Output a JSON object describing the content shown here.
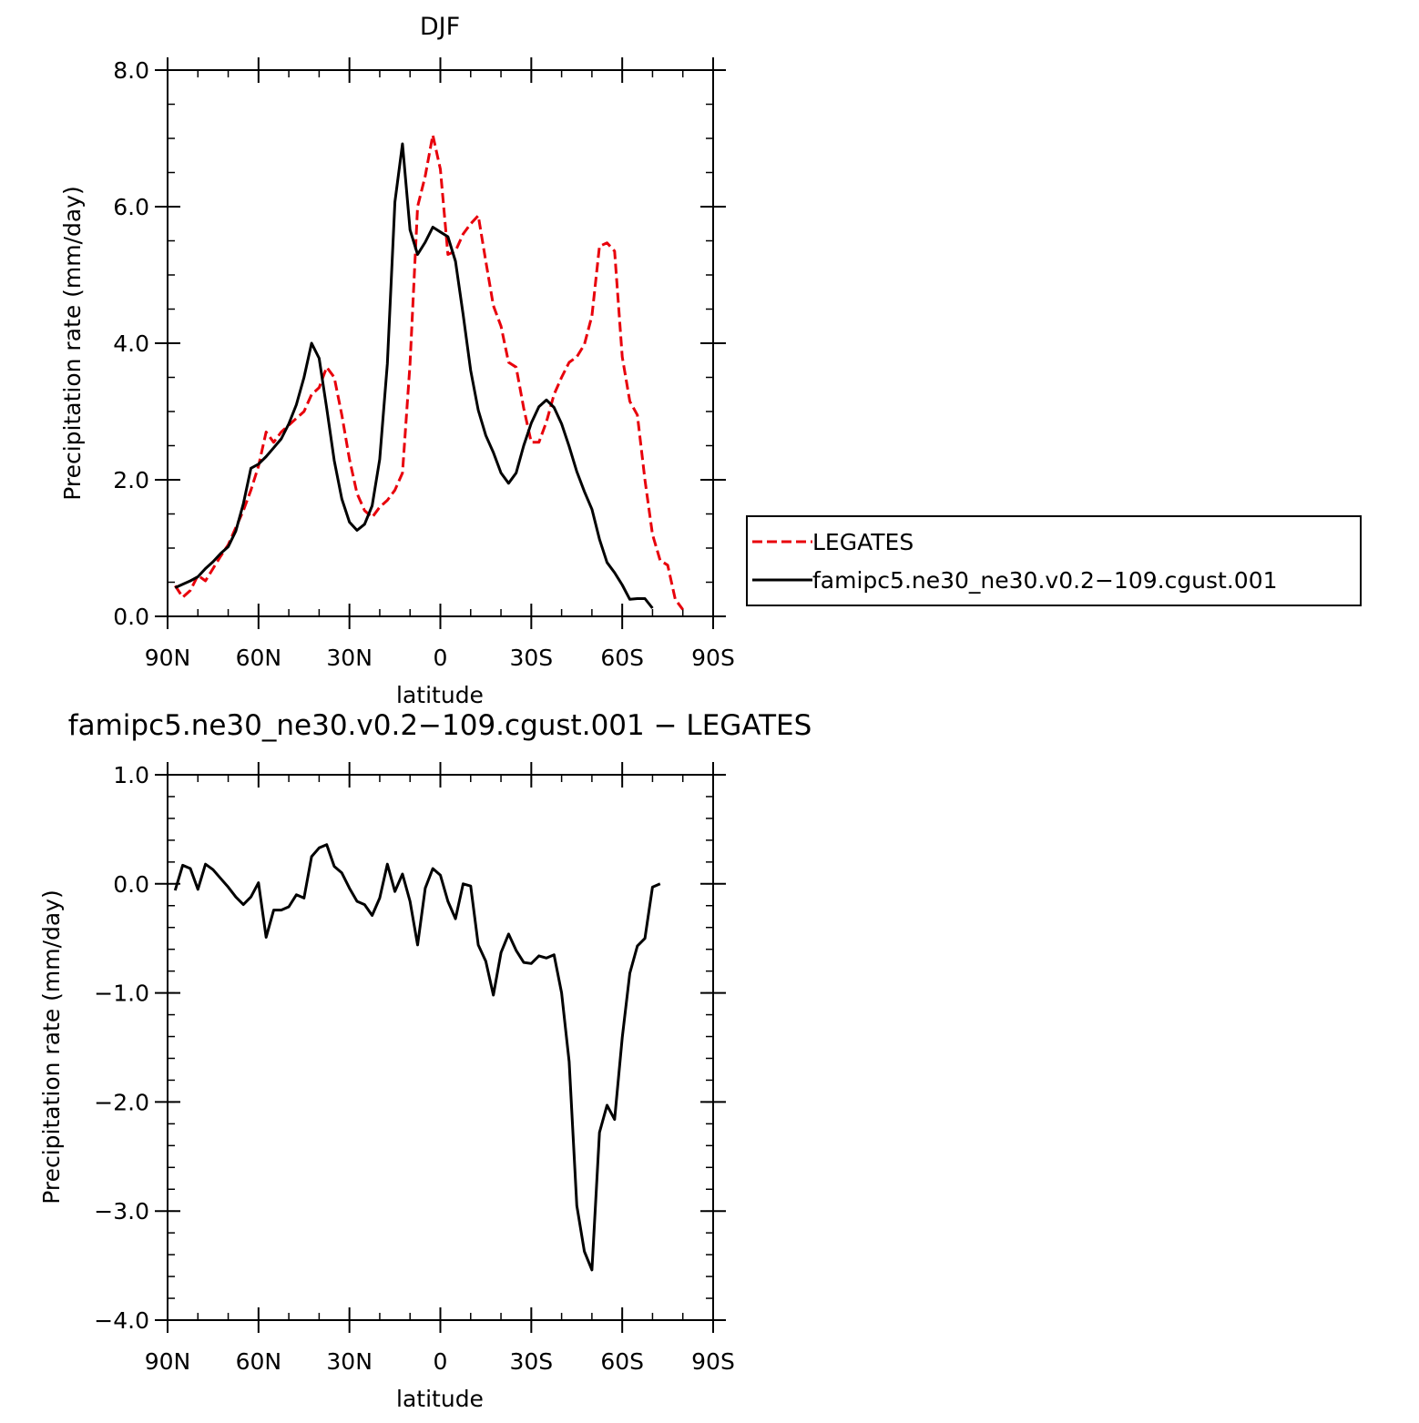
{
  "chart_data": [
    {
      "type": "line",
      "title": "DJF",
      "xlabel": "latitude",
      "ylabel": "Precipitation rate (mm/day)",
      "xlim": [
        90,
        -90
      ],
      "ylim": [
        0,
        8
      ],
      "x_tick_values": [
        90,
        60,
        30,
        0,
        -30,
        -60,
        -90
      ],
      "x_tick_labels": [
        "90N",
        "60N",
        "30N",
        "0",
        "30S",
        "60S",
        "90S"
      ],
      "y_tick_values": [
        0,
        2,
        4,
        6,
        8
      ],
      "y_tick_labels": [
        "0.0",
        "2.0",
        "4.0",
        "6.0",
        "8.0"
      ],
      "legend_position": "right",
      "series": [
        {
          "name": "LEGATES",
          "color": "#e8000b",
          "dash": "dashed",
          "points": [
            [
              87.5,
              0.45
            ],
            [
              85,
              0.28
            ],
            [
              82.5,
              0.38
            ],
            [
              80,
              0.6
            ],
            [
              77.5,
              0.52
            ],
            [
              75,
              0.7
            ],
            [
              72.5,
              0.88
            ],
            [
              70,
              1.05
            ],
            [
              67.5,
              1.3
            ],
            [
              65,
              1.55
            ],
            [
              62.5,
              1.85
            ],
            [
              60,
              2.2
            ],
            [
              57.5,
              2.7
            ],
            [
              55,
              2.55
            ],
            [
              52.5,
              2.7
            ],
            [
              50,
              2.8
            ],
            [
              47.5,
              2.9
            ],
            [
              45,
              3.0
            ],
            [
              42.5,
              3.25
            ],
            [
              40,
              3.35
            ],
            [
              37.5,
              3.65
            ],
            [
              35,
              3.5
            ],
            [
              32.5,
              2.95
            ],
            [
              30,
              2.3
            ],
            [
              27.5,
              1.8
            ],
            [
              25,
              1.55
            ],
            [
              22.5,
              1.45
            ],
            [
              20,
              1.6
            ],
            [
              17.5,
              1.7
            ],
            [
              15,
              1.85
            ],
            [
              12.5,
              2.1
            ],
            [
              10,
              3.7
            ],
            [
              7.5,
              6.0
            ],
            [
              5,
              6.45
            ],
            [
              2.5,
              7.05
            ],
            [
              0,
              6.55
            ],
            [
              -2.5,
              5.3
            ],
            [
              -5,
              5.35
            ],
            [
              -7.5,
              5.6
            ],
            [
              -10,
              5.75
            ],
            [
              -12.5,
              5.87
            ],
            [
              -15,
              5.2
            ],
            [
              -17.5,
              4.55
            ],
            [
              -20,
              4.25
            ],
            [
              -22.5,
              3.72
            ],
            [
              -25,
              3.65
            ],
            [
              -27.5,
              3.05
            ],
            [
              -30,
              2.55
            ],
            [
              -32.5,
              2.55
            ],
            [
              -35,
              2.85
            ],
            [
              -37.5,
              3.25
            ],
            [
              -40,
              3.5
            ],
            [
              -42.5,
              3.72
            ],
            [
              -45,
              3.8
            ],
            [
              -47.5,
              3.98
            ],
            [
              -50,
              4.4
            ],
            [
              -52.5,
              5.42
            ],
            [
              -55,
              5.47
            ],
            [
              -57.5,
              5.35
            ],
            [
              -60,
              3.8
            ],
            [
              -62.5,
              3.15
            ],
            [
              -65,
              2.95
            ],
            [
              -67.5,
              2.0
            ],
            [
              -70,
              1.2
            ],
            [
              -72.5,
              0.82
            ],
            [
              -75,
              0.75
            ],
            [
              -77.5,
              0.25
            ],
            [
              -80,
              0.1
            ]
          ]
        },
        {
          "name": "famipc5.ne30_ne30.v0.2−109.cgust.001",
          "color": "#000000",
          "dash": "solid",
          "points": [
            [
              87.5,
              0.42
            ],
            [
              85,
              0.47
            ],
            [
              82.5,
              0.52
            ],
            [
              80,
              0.58
            ],
            [
              77.5,
              0.7
            ],
            [
              75,
              0.8
            ],
            [
              72.5,
              0.92
            ],
            [
              70,
              1.02
            ],
            [
              67.5,
              1.25
            ],
            [
              65,
              1.65
            ],
            [
              62.5,
              2.17
            ],
            [
              60,
              2.23
            ],
            [
              57.5,
              2.34
            ],
            [
              55,
              2.47
            ],
            [
              52.5,
              2.6
            ],
            [
              50,
              2.82
            ],
            [
              47.5,
              3.1
            ],
            [
              45,
              3.5
            ],
            [
              42.5,
              4.0
            ],
            [
              40,
              3.78
            ],
            [
              37.5,
              3.05
            ],
            [
              35,
              2.28
            ],
            [
              32.5,
              1.72
            ],
            [
              30,
              1.38
            ],
            [
              27.5,
              1.26
            ],
            [
              25,
              1.35
            ],
            [
              22.5,
              1.62
            ],
            [
              20,
              2.3
            ],
            [
              17.5,
              3.7
            ],
            [
              15,
              6.07
            ],
            [
              12.5,
              6.92
            ],
            [
              10,
              5.66
            ],
            [
              7.5,
              5.3
            ],
            [
              5,
              5.48
            ],
            [
              2.5,
              5.7
            ],
            [
              0,
              5.63
            ],
            [
              -2.5,
              5.56
            ],
            [
              -5,
              5.2
            ],
            [
              -7.5,
              4.42
            ],
            [
              -10,
              3.6
            ],
            [
              -12.5,
              3.02
            ],
            [
              -15,
              2.65
            ],
            [
              -17.5,
              2.4
            ],
            [
              -20,
              2.1
            ],
            [
              -22.5,
              1.95
            ],
            [
              -25,
              2.1
            ],
            [
              -27.5,
              2.5
            ],
            [
              -30,
              2.83
            ],
            [
              -32.5,
              3.07
            ],
            [
              -35,
              3.17
            ],
            [
              -37.5,
              3.06
            ],
            [
              -40,
              2.82
            ],
            [
              -42.5,
              2.49
            ],
            [
              -45,
              2.12
            ],
            [
              -47.5,
              1.83
            ],
            [
              -50,
              1.57
            ],
            [
              -52.5,
              1.13
            ],
            [
              -55,
              0.79
            ],
            [
              -57.5,
              0.64
            ],
            [
              -60,
              0.46
            ],
            [
              -62.5,
              0.25
            ],
            [
              -65,
              0.26
            ],
            [
              -67.5,
              0.26
            ],
            [
              -70,
              0.12
            ]
          ]
        }
      ]
    },
    {
      "type": "line",
      "title": "famipc5.ne30_ne30.v0.2−109.cgust.001 − LEGATES",
      "xlabel": "latitude",
      "ylabel": "Precipitation rate (mm/day)",
      "xlim": [
        90,
        -90
      ],
      "ylim": [
        -4,
        1
      ],
      "x_tick_values": [
        90,
        60,
        30,
        0,
        -30,
        -60,
        -90
      ],
      "x_tick_labels": [
        "90N",
        "60N",
        "30N",
        "0",
        "30S",
        "60S",
        "90S"
      ],
      "y_tick_values": [
        -4,
        -3,
        -2,
        -1,
        0,
        1
      ],
      "y_tick_labels": [
        "−4.0",
        "−3.0",
        "−2.0",
        "−1.0",
        "0.0",
        "1.0"
      ],
      "series": [
        {
          "color": "#000000",
          "dash": "solid",
          "points": [
            [
              87.5,
              -0.06
            ],
            [
              85,
              0.17
            ],
            [
              82.5,
              0.14
            ],
            [
              80,
              -0.05
            ],
            [
              77.5,
              0.18
            ],
            [
              75,
              0.13
            ],
            [
              72.5,
              0.05
            ],
            [
              70,
              -0.03
            ],
            [
              67.5,
              -0.12
            ],
            [
              65,
              -0.19
            ],
            [
              62.5,
              -0.12
            ],
            [
              60,
              0.01
            ],
            [
              57.5,
              -0.49
            ],
            [
              55,
              -0.24
            ],
            [
              52.5,
              -0.24
            ],
            [
              50,
              -0.21
            ],
            [
              47.5,
              -0.1
            ],
            [
              45,
              -0.13
            ],
            [
              42.5,
              0.25
            ],
            [
              40,
              0.33
            ],
            [
              37.5,
              0.36
            ],
            [
              35,
              0.16
            ],
            [
              32.5,
              0.1
            ],
            [
              30,
              -0.04
            ],
            [
              27.5,
              -0.16
            ],
            [
              25,
              -0.19
            ],
            [
              22.5,
              -0.29
            ],
            [
              20,
              -0.13
            ],
            [
              17.5,
              0.18
            ],
            [
              15,
              -0.07
            ],
            [
              12.5,
              0.09
            ],
            [
              10,
              -0.16
            ],
            [
              7.5,
              -0.56
            ],
            [
              5,
              -0.04
            ],
            [
              2.5,
              0.14
            ],
            [
              0,
              0.08
            ],
            [
              -2.5,
              -0.16
            ],
            [
              -5,
              -0.32
            ],
            [
              -7.5,
              0.0
            ],
            [
              -10,
              -0.02
            ],
            [
              -12.5,
              -0.56
            ],
            [
              -15,
              -0.71
            ],
            [
              -17.5,
              -1.02
            ],
            [
              -20,
              -0.63
            ],
            [
              -22.5,
              -0.46
            ],
            [
              -25,
              -0.61
            ],
            [
              -27.5,
              -0.72
            ],
            [
              -30,
              -0.73
            ],
            [
              -32.5,
              -0.66
            ],
            [
              -35,
              -0.68
            ],
            [
              -37.5,
              -0.65
            ],
            [
              -40,
              -1.0
            ],
            [
              -42.5,
              -1.63
            ],
            [
              -45,
              -2.95
            ],
            [
              -47.5,
              -3.37
            ],
            [
              -50,
              -3.54
            ],
            [
              -52.5,
              -2.28
            ],
            [
              -55,
              -2.03
            ],
            [
              -57.5,
              -2.16
            ],
            [
              -60,
              -1.41
            ],
            [
              -62.5,
              -0.82
            ],
            [
              -65,
              -0.57
            ],
            [
              -67.5,
              -0.5
            ],
            [
              -70,
              -0.03
            ],
            [
              -72.5,
              0.0
            ]
          ]
        }
      ]
    }
  ]
}
